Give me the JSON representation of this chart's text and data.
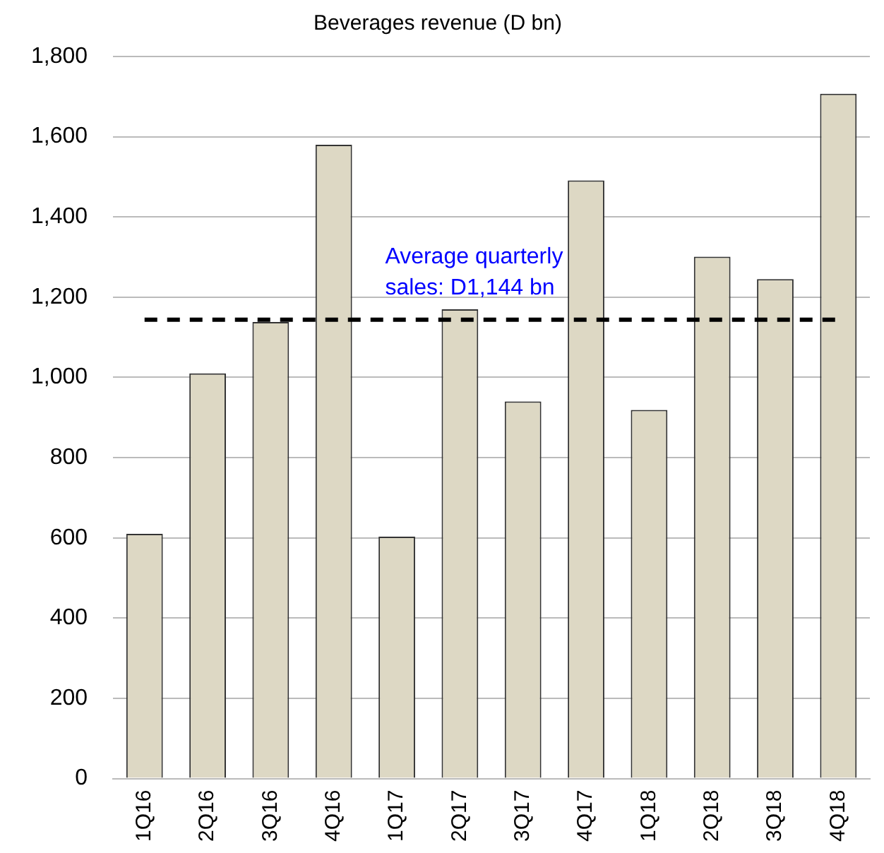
{
  "chart_data": {
    "type": "bar",
    "title": "Beverages revenue (D bn)",
    "categories": [
      "1Q16",
      "2Q16",
      "3Q16",
      "4Q16",
      "1Q17",
      "2Q17",
      "3Q17",
      "4Q17",
      "1Q18",
      "2Q18",
      "3Q18",
      "4Q18"
    ],
    "values": [
      610,
      1010,
      1138,
      1580,
      603,
      1170,
      940,
      1491,
      919,
      1301,
      1245,
      1707
    ],
    "color": "#ddd8c4",
    "ylim": [
      0,
      1800
    ],
    "yticks": [
      0,
      200,
      400,
      600,
      800,
      {
        "value": 1000,
        "label": "1,000"
      },
      {
        "value": 1200,
        "label": "1,200"
      },
      {
        "value": 1400,
        "label": "1,400"
      },
      {
        "value": 1600,
        "label": "1,600"
      },
      {
        "value": 1800,
        "label": "1,800"
      }
    ],
    "grid": "y",
    "ref_lines": [
      {
        "axis": "y",
        "value": 1144,
        "label": "Average quarterly sales: D1,144 bn",
        "color": "#000000",
        "line_style": "dashed"
      }
    ]
  }
}
